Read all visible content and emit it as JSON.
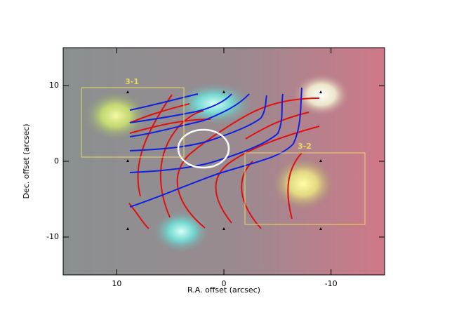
{
  "chart_data": {
    "type": "image",
    "xlabel": "R.A. offset (arcsec)",
    "ylabel": "Dec. offset (arcsec)",
    "xlim": [
      15,
      -15
    ],
    "xticks": [
      10,
      0,
      -10
    ],
    "ylim": [
      -15,
      15
    ],
    "yticks": [
      10,
      0,
      -10
    ],
    "annotations": [
      "3-1",
      "3-2"
    ]
  }
}
